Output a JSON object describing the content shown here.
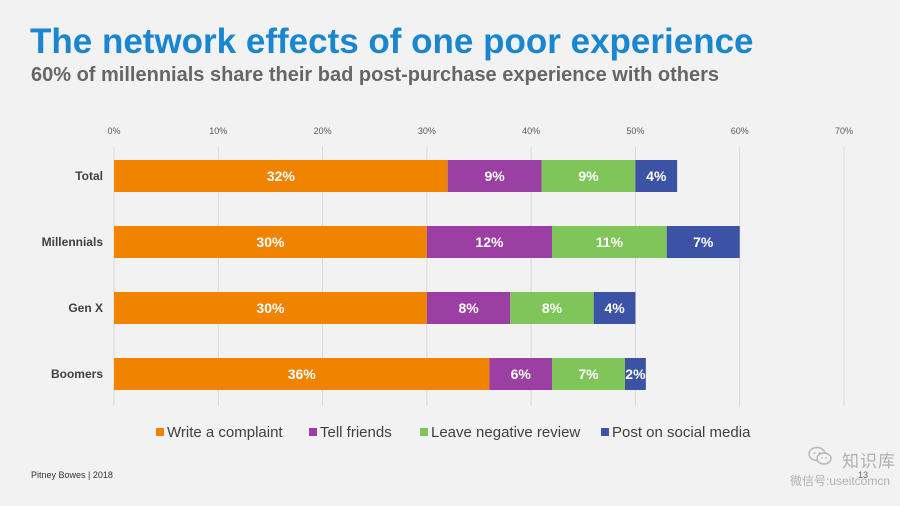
{
  "title": "The network effects of one poor experience",
  "subtitle": "60% of millennials share their bad post-purchase experience with others",
  "footer": "Pitney Bowes | 2018",
  "page_number": "13",
  "watermark": {
    "big": "知识库",
    "small": "微信号:useitcomcn"
  },
  "colors": {
    "title": "#1a86d0",
    "write": "#f08300",
    "tell": "#9b3fa3",
    "review": "#7fc55a",
    "post": "#3b52a5"
  },
  "chart_data": {
    "type": "bar",
    "orientation": "horizontal",
    "stacked": true,
    "categories": [
      "Total",
      "Millennials",
      "Gen X",
      "Boomers"
    ],
    "xlim": [
      0,
      70
    ],
    "ticks": [
      "0%",
      "10%",
      "20%",
      "30%",
      "40%",
      "50%",
      "60%",
      "70%"
    ],
    "grid": true,
    "legend_position": "bottom",
    "series": [
      {
        "name": "Write a complaint",
        "color": "#f08300",
        "values": [
          32,
          30,
          30,
          36
        ],
        "labels": [
          "32%",
          "30%",
          "30%",
          "36%"
        ]
      },
      {
        "name": "Tell friends",
        "color": "#9b3fa3",
        "values": [
          9,
          12,
          8,
          6
        ],
        "labels": [
          "9%",
          "12%",
          "8%",
          "6%"
        ]
      },
      {
        "name": "Leave negative review",
        "color": "#7fc55a",
        "values": [
          9,
          11,
          8,
          7
        ],
        "labels": [
          "9%",
          "11%",
          "8%",
          "7%"
        ]
      },
      {
        "name": "Post on social media",
        "color": "#3b52a5",
        "values": [
          4,
          7,
          4,
          2
        ],
        "labels": [
          "4%",
          "7%",
          "4%",
          "2%"
        ]
      }
    ]
  }
}
